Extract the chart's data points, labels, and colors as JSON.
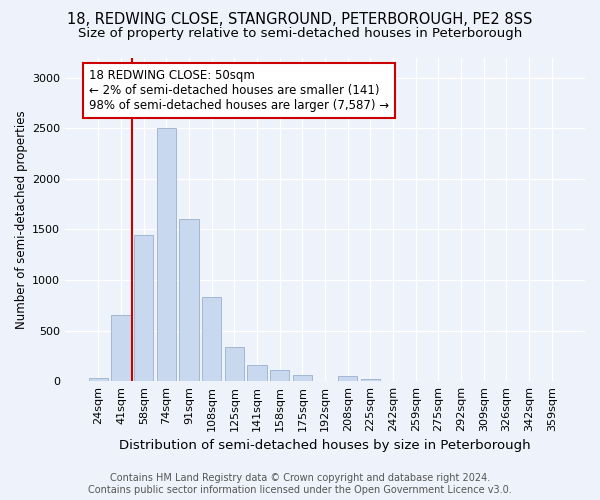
{
  "title": "18, REDWING CLOSE, STANGROUND, PETERBOROUGH, PE2 8SS",
  "subtitle": "Size of property relative to semi-detached houses in Peterborough",
  "xlabel": "Distribution of semi-detached houses by size in Peterborough",
  "ylabel": "Number of semi-detached properties",
  "bar_labels": [
    "24sqm",
    "41sqm",
    "58sqm",
    "74sqm",
    "91sqm",
    "108sqm",
    "125sqm",
    "141sqm",
    "158sqm",
    "175sqm",
    "192sqm",
    "208sqm",
    "225sqm",
    "242sqm",
    "259sqm",
    "275sqm",
    "292sqm",
    "309sqm",
    "326sqm",
    "342sqm",
    "359sqm"
  ],
  "bar_values": [
    35,
    650,
    1450,
    2500,
    1600,
    830,
    340,
    160,
    110,
    60,
    5,
    50,
    25,
    5,
    3,
    2,
    0,
    0,
    0,
    0,
    0
  ],
  "bar_color": "#c8d8ee",
  "bar_edge_color": "#9ab0cc",
  "vline_x": 1.5,
  "annotation_title": "18 REDWING CLOSE: 50sqm",
  "annotation_line1": "← 2% of semi-detached houses are smaller (141)",
  "annotation_line2": "98% of semi-detached houses are larger (7,587) →",
  "annotation_box_color": "#ffffff",
  "annotation_box_edge_color": "#cc0000",
  "vline_color": "#cc0000",
  "ylim": [
    0,
    3200
  ],
  "yticks": [
    0,
    500,
    1000,
    1500,
    2000,
    2500,
    3000
  ],
  "footer_line1": "Contains HM Land Registry data © Crown copyright and database right 2024.",
  "footer_line2": "Contains public sector information licensed under the Open Government Licence v3.0.",
  "title_fontsize": 10.5,
  "subtitle_fontsize": 9.5,
  "xlabel_fontsize": 9.5,
  "ylabel_fontsize": 8.5,
  "tick_fontsize": 8,
  "footer_fontsize": 7,
  "background_color": "#eef2fa",
  "axes_background_color": "#eef2fa"
}
